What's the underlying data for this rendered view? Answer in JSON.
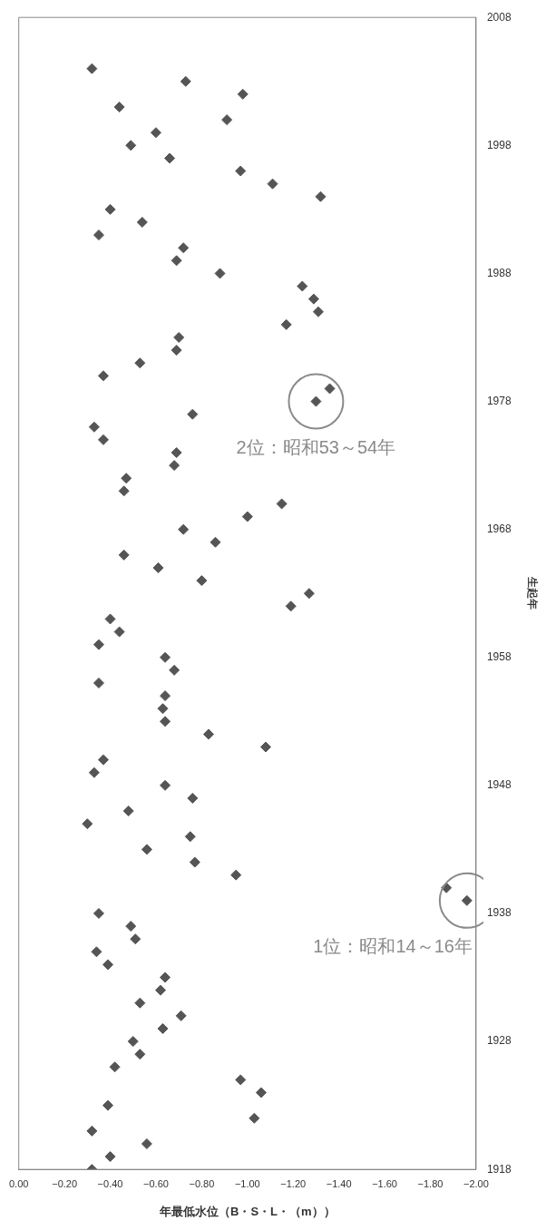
{
  "chart_data": {
    "type": "scatter",
    "xlabel": "年最低水位（B・S・L・（m））",
    "ylabel": "生起年",
    "x": [
      -0.32,
      -0.4,
      -0.56,
      -0.32,
      -1.03,
      -0.39,
      -1.06,
      -0.97,
      -0.42,
      -0.53,
      -0.5,
      -0.63,
      -0.71,
      -0.53,
      -0.62,
      -0.64,
      -0.39,
      -0.34,
      -0.51,
      -0.49,
      -0.35,
      -1.96,
      -1.87,
      -0.95,
      -0.77,
      -0.56,
      -0.75,
      -0.3,
      -0.48,
      -0.76,
      -0.64,
      -0.33,
      -0.37,
      -1.08,
      -0.83,
      -0.64,
      -0.63,
      -0.64,
      -0.35,
      -0.68,
      -0.64,
      -0.35,
      -0.44,
      -0.4,
      -1.19,
      -1.27,
      -0.8,
      -0.61,
      -0.46,
      -0.86,
      -0.72,
      -1.0,
      -1.15,
      -0.46,
      -0.47,
      -0.68,
      -0.69,
      -0.37,
      -0.33,
      -0.76,
      -1.3,
      -1.36,
      -0.37,
      -0.53,
      -0.69,
      -0.7,
      -1.17,
      -1.31,
      -1.29,
      -1.24,
      -0.88,
      -0.69,
      -0.72,
      -0.35,
      -0.54,
      -0.4,
      -1.32,
      -1.11,
      -0.97,
      -0.66,
      -0.49,
      -0.6,
      -0.91,
      -0.44,
      -0.98,
      -0.73,
      -0.32
    ],
    "values": [
      1918,
      1919,
      1920,
      1921,
      1922,
      1923,
      1924,
      1925,
      1926,
      1927,
      1928,
      1929,
      1930,
      1931,
      1932,
      1933,
      1934,
      1935,
      1936,
      1937,
      1938,
      1939,
      1940,
      1941,
      1942,
      1943,
      1944,
      1945,
      1946,
      1947,
      1948,
      1949,
      1950,
      1951,
      1952,
      1953,
      1954,
      1955,
      1956,
      1957,
      1958,
      1959,
      1960,
      1961,
      1962,
      1963,
      1964,
      1965,
      1966,
      1967,
      1968,
      1969,
      1970,
      1971,
      1972,
      1973,
      1974,
      1975,
      1976,
      1977,
      1978,
      1979,
      1980,
      1981,
      1982,
      1983,
      1984,
      1985,
      1986,
      1987,
      1988,
      1989,
      1990,
      1991,
      1992,
      1993,
      1994,
      1995,
      1996,
      1997,
      1998,
      1999,
      2000,
      2001,
      2002,
      2003,
      2004
    ],
    "color": "#555555",
    "marker": "diamond",
    "grid": false,
    "legend": false,
    "ylim": [
      1918,
      2008
    ],
    "yticks": [
      1918,
      1928,
      1938,
      1948,
      1958,
      1968,
      1978,
      1988,
      1998,
      2008
    ],
    "xlim": [
      0,
      -2
    ],
    "xticks": [
      {
        "value": 0,
        "label": "0.00"
      },
      {
        "value": -0.2,
        "label": "−0.20"
      },
      {
        "value": -0.4,
        "label": "−0.40"
      },
      {
        "value": -0.6,
        "label": "−0.60"
      },
      {
        "value": -0.8,
        "label": "−0.80"
      },
      {
        "value": -1,
        "label": "−1.00"
      },
      {
        "value": -1.2,
        "label": "−1.20"
      },
      {
        "value": -1.4,
        "label": "−1.40"
      },
      {
        "value": -1.6,
        "label": "−1.60"
      },
      {
        "value": -1.8,
        "label": "−1.80"
      },
      {
        "value": -2,
        "label": "−2.00"
      }
    ],
    "annotations": [
      {
        "text": "1位：昭和14～16年",
        "x": -1.96,
        "y": 1939
      },
      {
        "text": "2位：昭和53～54年",
        "x": -1.3,
        "y": 1978
      }
    ]
  }
}
